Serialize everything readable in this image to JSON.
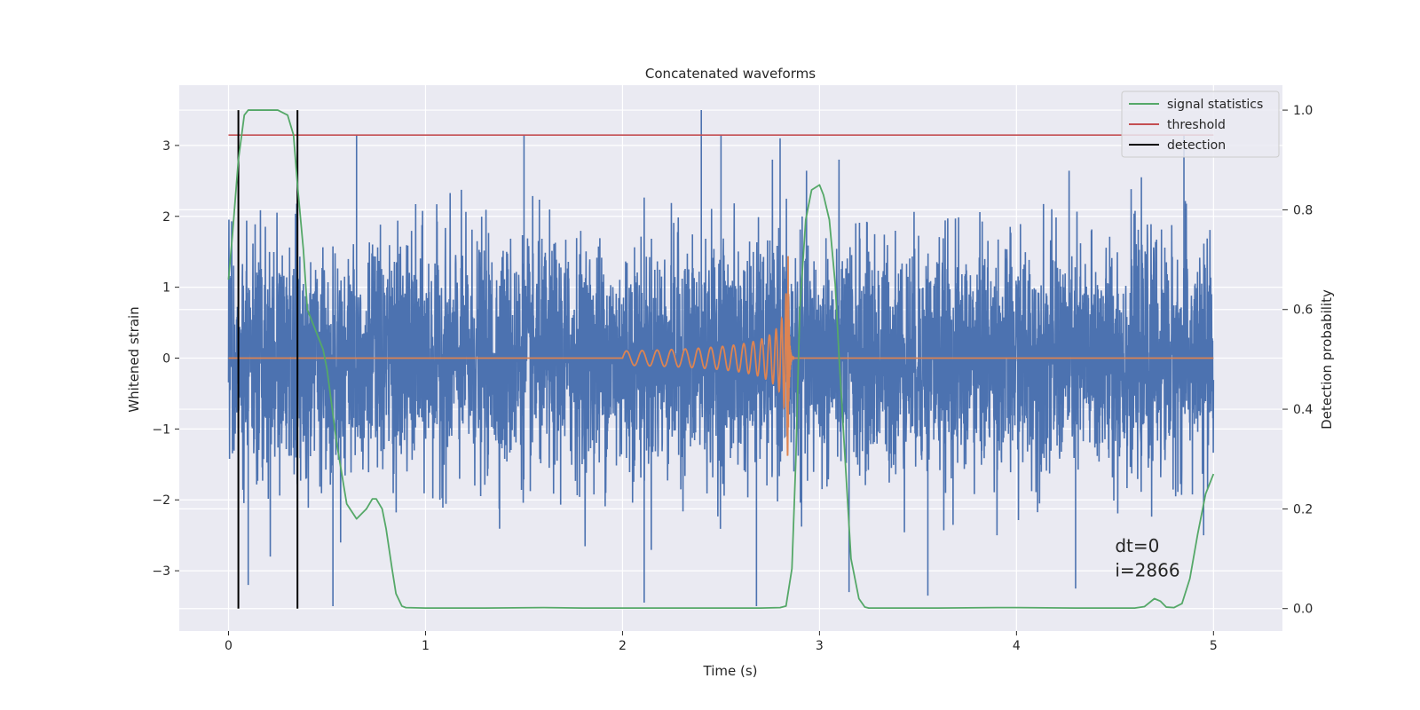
{
  "chart_data": {
    "type": "line",
    "title": "Concatenated waveforms",
    "xlabel": "Time (s)",
    "ylabel_left": "Whitened strain",
    "ylabel_right": "Detection probability",
    "xlim": [
      -0.25,
      5.35
    ],
    "ylim_left": [
      -3.85,
      3.85
    ],
    "ylim_right": [
      -0.045,
      1.05
    ],
    "x_ticks": [
      0,
      1,
      2,
      3,
      4,
      5
    ],
    "y_left_ticks": [
      -3,
      -2,
      -1,
      0,
      1,
      2,
      3
    ],
    "y_right_ticks": [
      0.0,
      0.2,
      0.4,
      0.6,
      0.8,
      1.0
    ],
    "x_tick_labels": [
      "0",
      "1",
      "2",
      "3",
      "4",
      "5"
    ],
    "y_left_tick_labels": [
      "−3",
      "−2",
      "−1",
      "0",
      "1",
      "2",
      "3"
    ],
    "y_right_tick_labels": [
      "0.0",
      "0.2",
      "0.4",
      "0.6",
      "0.8",
      "1.0"
    ],
    "grid": true,
    "legend_position": "top-right",
    "series": [
      {
        "name": "signal statistics",
        "axis": "right",
        "color": "#55a868",
        "x": [
          0.0,
          0.02,
          0.05,
          0.08,
          0.1,
          0.13,
          0.16,
          0.2,
          0.25,
          0.3,
          0.33,
          0.35,
          0.38,
          0.4,
          0.43,
          0.45,
          0.48,
          0.5,
          0.52,
          0.55,
          0.6,
          0.65,
          0.7,
          0.73,
          0.75,
          0.78,
          0.8,
          0.83,
          0.85,
          0.88,
          0.9,
          1.0,
          1.3,
          1.6,
          1.8,
          2.0,
          2.3,
          2.5,
          2.7,
          2.8,
          2.83,
          2.86,
          2.88,
          2.9,
          2.93,
          2.96,
          3.0,
          3.02,
          3.05,
          3.08,
          3.1,
          3.13,
          3.16,
          3.2,
          3.23,
          3.25,
          3.3,
          3.6,
          3.9,
          4.0,
          4.3,
          4.6,
          4.65,
          4.7,
          4.73,
          4.76,
          4.8,
          4.84,
          4.88,
          4.92,
          4.96,
          5.0
        ],
        "y": [
          0.66,
          0.75,
          0.9,
          0.99,
          1.0,
          1.0,
          1.0,
          1.0,
          1.0,
          0.99,
          0.95,
          0.85,
          0.72,
          0.6,
          0.57,
          0.55,
          0.52,
          0.48,
          0.42,
          0.33,
          0.21,
          0.18,
          0.2,
          0.22,
          0.22,
          0.2,
          0.16,
          0.08,
          0.03,
          0.005,
          0.002,
          0.001,
          0.001,
          0.002,
          0.001,
          0.001,
          0.001,
          0.001,
          0.001,
          0.002,
          0.005,
          0.08,
          0.3,
          0.6,
          0.78,
          0.84,
          0.85,
          0.83,
          0.78,
          0.65,
          0.5,
          0.3,
          0.1,
          0.02,
          0.003,
          0.001,
          0.001,
          0.001,
          0.002,
          0.002,
          0.001,
          0.001,
          0.004,
          0.02,
          0.015,
          0.003,
          0.002,
          0.01,
          0.06,
          0.15,
          0.23,
          0.27
        ]
      },
      {
        "name": "threshold",
        "axis": "right",
        "color": "#c44e52",
        "x": [
          0.0,
          5.0
        ],
        "y": [
          0.95,
          0.95
        ]
      },
      {
        "name": "detection",
        "axis": "right",
        "color": "#000000",
        "x": [
          0.05,
          0.35
        ],
        "y_range": [
          0.0,
          1.0
        ]
      },
      {
        "name": "",
        "axis": "left",
        "color": "#4c72b0",
        "description_noise": "whitened strain noise, sampled 0 to 5 s",
        "x_range": [
          0.0,
          5.0
        ],
        "envelope": 2.8,
        "spikes": [
          {
            "x": 0.1,
            "y": -3.2
          },
          {
            "x": 0.53,
            "y": -3.5
          },
          {
            "x": 0.65,
            "y": 3.15
          },
          {
            "x": 1.5,
            "y": 3.15
          },
          {
            "x": 2.11,
            "y": -3.45
          },
          {
            "x": 2.4,
            "y": 3.5
          },
          {
            "x": 2.5,
            "y": 3.15
          },
          {
            "x": 2.68,
            "y": -3.5
          },
          {
            "x": 2.8,
            "y": 3.1
          },
          {
            "x": 3.15,
            "y": -3.3
          },
          {
            "x": 3.55,
            "y": -3.35
          },
          {
            "x": 4.3,
            "y": -3.25
          },
          {
            "x": 4.85,
            "y": 3.15
          },
          {
            "x": 4.95,
            "y": -2.5
          }
        ]
      },
      {
        "name": "",
        "axis": "left",
        "color": "#dd8452",
        "description_chirp": "injected chirp from 2.0 s to 2.85 s, peak amplitude about 1.65",
        "x_start": 2.0,
        "x_merger": 2.84,
        "x_end": 2.87,
        "amplitude_start": 0.1,
        "amplitude_peak": 1.65
      }
    ],
    "annotations": [
      {
        "text": "dt=0",
        "x": 4.5,
        "y_axes_fraction": 0.145
      },
      {
        "text": "i=2866",
        "x": 4.5,
        "y_axes_fraction": 0.1
      }
    ]
  }
}
